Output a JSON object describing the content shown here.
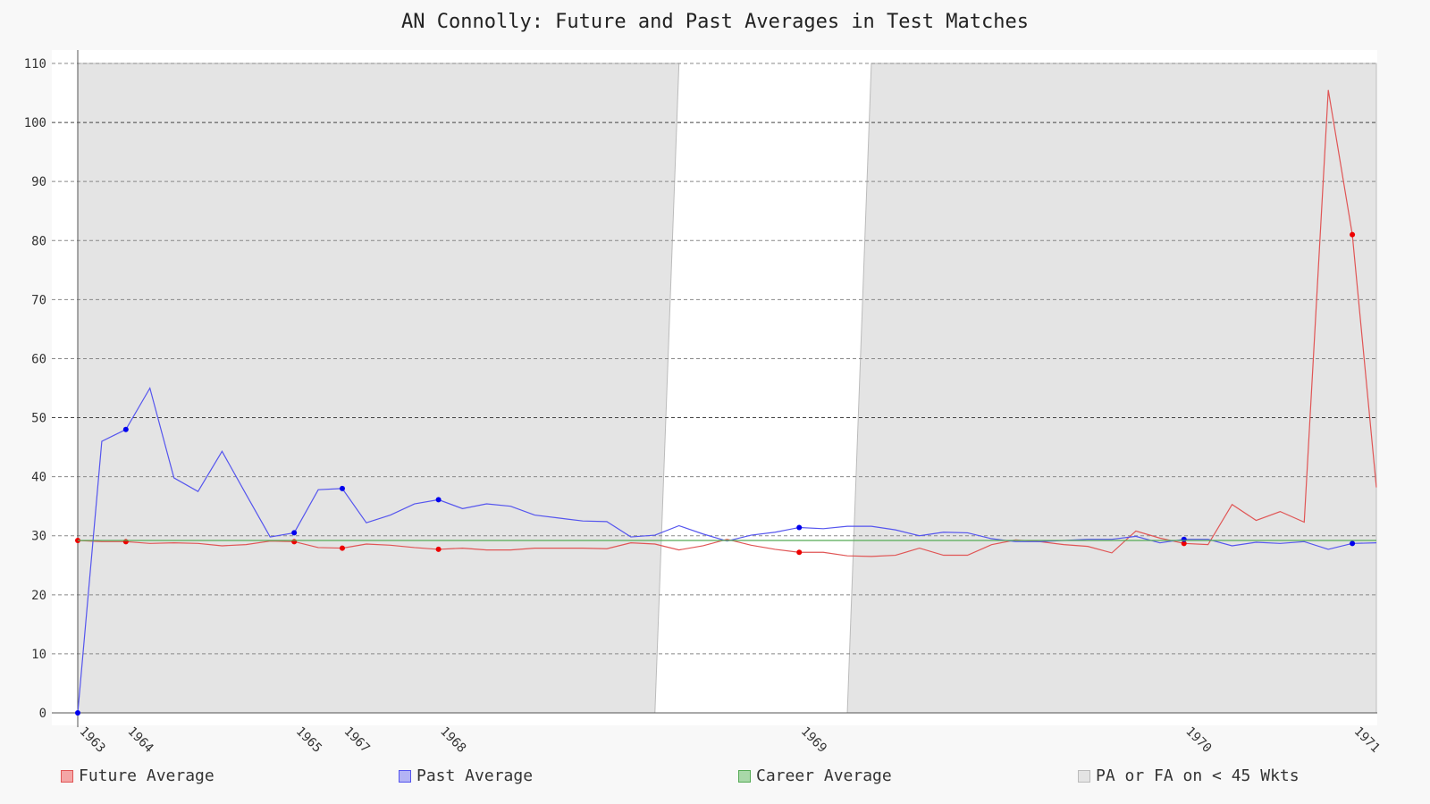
{
  "chart_data": {
    "type": "line",
    "title": "AN Connolly: Future and Past Averages in Test Matches",
    "xlabel": "",
    "ylabel": "",
    "ylim": [
      0,
      110
    ],
    "yticks": [
      0,
      10,
      20,
      30,
      40,
      50,
      60,
      70,
      80,
      90,
      100,
      110
    ],
    "grid": true,
    "legend_position": "bottom",
    "x_tick_labels": [
      {
        "label": "1963",
        "index": 0
      },
      {
        "label": "1964",
        "index": 2
      },
      {
        "label": "1965",
        "index": 9
      },
      {
        "label": "1967",
        "index": 11
      },
      {
        "label": "1968",
        "index": 15
      },
      {
        "label": "1969",
        "index": 30
      },
      {
        "label": "1970",
        "index": 46
      },
      {
        "label": "1971",
        "index": 53
      }
    ],
    "x_count": 55,
    "series": [
      {
        "name": "Future Average",
        "color": "#e05555",
        "marker_color": "#ee0000",
        "values": [
          29.2,
          29.0,
          29.0,
          28.7,
          28.8,
          28.7,
          28.3,
          28.5,
          29.1,
          29.0,
          28.0,
          27.9,
          28.6,
          28.4,
          28.0,
          27.7,
          27.9,
          27.6,
          27.6,
          27.9,
          27.9,
          27.9,
          27.8,
          28.8,
          28.6,
          27.6,
          28.3,
          29.4,
          28.4,
          27.7,
          27.2,
          27.2,
          26.6,
          26.5,
          26.7,
          27.9,
          26.7,
          26.7,
          28.5,
          29.3,
          29.0,
          28.5,
          28.2,
          27.1,
          30.8,
          29.6,
          28.7,
          28.5,
          35.3,
          32.6,
          34.1,
          32.3,
          105.5,
          81.0,
          38.2
        ],
        "markers": [
          0,
          2,
          9,
          11,
          15,
          30,
          46,
          53
        ]
      },
      {
        "name": "Past Average",
        "color": "#5555ee",
        "marker_color": "#0000ee",
        "values": [
          0,
          46.0,
          48.0,
          55.0,
          39.8,
          37.5,
          44.3,
          37.0,
          29.8,
          30.5,
          37.8,
          38.0,
          32.2,
          33.5,
          35.4,
          36.1,
          34.6,
          35.4,
          35.0,
          33.5,
          33.0,
          32.5,
          32.4,
          29.8,
          30.1,
          31.7,
          30.3,
          29.1,
          30.1,
          30.6,
          31.4,
          31.2,
          31.6,
          31.6,
          31.0,
          30.0,
          30.6,
          30.5,
          29.5,
          29.0,
          29.0,
          29.2,
          29.4,
          29.4,
          29.9,
          28.8,
          29.4,
          29.4,
          28.3,
          28.9,
          28.7,
          29.0,
          27.7,
          28.7,
          28.8
        ],
        "markers": [
          0,
          2,
          9,
          11,
          15,
          30,
          46,
          53
        ]
      },
      {
        "name": "Career Average",
        "color": "#55aa55",
        "constant": 29.2
      }
    ],
    "shaded_regions": {
      "name": "PA or FA on < 45 Wkts",
      "color": "#e4e4e4",
      "outline": "#bbbbbb",
      "ranges": [
        [
          0,
          25
        ],
        [
          33,
          54
        ]
      ]
    }
  }
}
